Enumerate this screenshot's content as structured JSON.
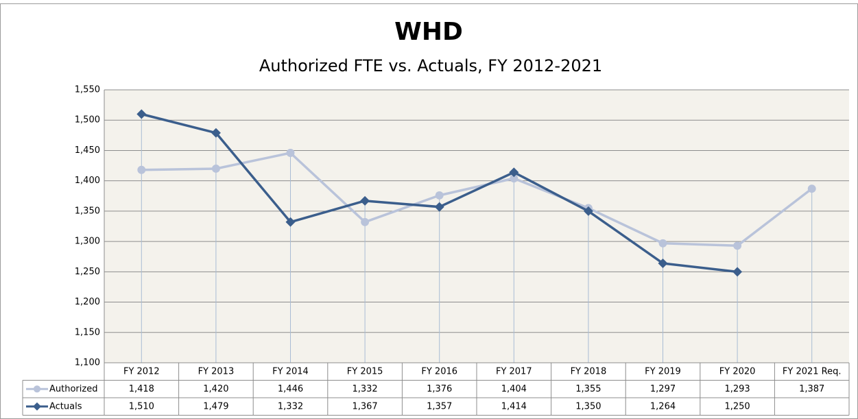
{
  "chart_data": {
    "type": "line",
    "title": "WHD",
    "subtitle": "Authorized FTE vs. Actuals, FY 2012-2021",
    "categories": [
      "FY 2012",
      "FY 2013",
      "FY 2014",
      "FY 2015",
      "FY 2016",
      "FY 2017",
      "FY 2018",
      "FY 2019",
      "FY 2020",
      "FY 2021 Req."
    ],
    "series": [
      {
        "name": "Authorized",
        "color": "#b9c3da",
        "marker": "circle",
        "values": [
          1418,
          1420,
          1446,
          1332,
          1376,
          1404,
          1355,
          1297,
          1293,
          1387
        ],
        "value_labels": [
          "1,418",
          "1,420",
          "1,446",
          "1,332",
          "1,376",
          "1,404",
          "1,355",
          "1,297",
          "1,293",
          "1,387"
        ]
      },
      {
        "name": "Actuals",
        "color": "#3b5e8c",
        "marker": "diamond",
        "values": [
          1510,
          1479,
          1332,
          1367,
          1357,
          1414,
          1350,
          1264,
          1250,
          null
        ],
        "value_labels": [
          "1,510",
          "1,479",
          "1,332",
          "1,367",
          "1,357",
          "1,414",
          "1,350",
          "1,264",
          "1,250",
          null
        ]
      }
    ],
    "ylim": [
      1100,
      1550
    ],
    "yticks": [
      {
        "value": 1100,
        "label": "1,100"
      },
      {
        "value": 1150,
        "label": "1,150"
      },
      {
        "value": 1200,
        "label": "1,200"
      },
      {
        "value": 1250,
        "label": "1,250"
      },
      {
        "value": 1300,
        "label": "1,300"
      },
      {
        "value": 1350,
        "label": "1,350"
      },
      {
        "value": 1400,
        "label": "1,400"
      },
      {
        "value": 1450,
        "label": "1,450"
      },
      {
        "value": 1500,
        "label": "1,500"
      },
      {
        "value": 1550,
        "label": "1,550"
      }
    ],
    "grid": true,
    "drop_lines": true,
    "data_table": true
  }
}
